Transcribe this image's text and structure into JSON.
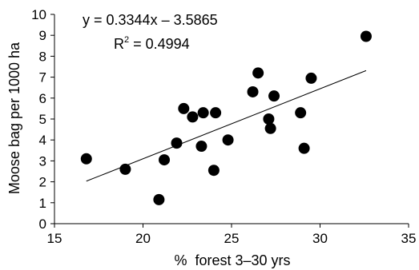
{
  "chart_data": {
    "type": "scatter",
    "xlabel": "%  forest 3–30 yrs",
    "ylabel": "Moose bag per 1000 ha",
    "xlim": [
      15,
      35
    ],
    "ylim": [
      0,
      10
    ],
    "x_ticks": [
      "15",
      "20",
      "25",
      "30",
      "35"
    ],
    "y_ticks": [
      "0",
      "1",
      "2",
      "3",
      "4",
      "5",
      "6",
      "7",
      "8",
      "9",
      "10"
    ],
    "grid": false,
    "equation": "y = 0.3344x – 3.5865",
    "r_squared_label": "R",
    "r_squared_exp": "2",
    "r_squared_value": " = 0.4994",
    "trendline": {
      "slope": 0.3344,
      "intercept": -3.5865,
      "x_range": [
        16.8,
        32.6
      ]
    },
    "points": [
      {
        "x": 16.8,
        "y": 3.1
      },
      {
        "x": 19.0,
        "y": 2.6
      },
      {
        "x": 20.9,
        "y": 1.15
      },
      {
        "x": 21.2,
        "y": 3.05
      },
      {
        "x": 21.9,
        "y": 3.85
      },
      {
        "x": 22.3,
        "y": 5.5
      },
      {
        "x": 22.8,
        "y": 5.1
      },
      {
        "x": 23.3,
        "y": 3.7
      },
      {
        "x": 23.4,
        "y": 5.3
      },
      {
        "x": 24.0,
        "y": 2.55
      },
      {
        "x": 24.1,
        "y": 5.3
      },
      {
        "x": 24.8,
        "y": 4.0
      },
      {
        "x": 26.2,
        "y": 6.3
      },
      {
        "x": 26.5,
        "y": 7.2
      },
      {
        "x": 27.1,
        "y": 5.0
      },
      {
        "x": 27.2,
        "y": 4.55
      },
      {
        "x": 27.4,
        "y": 6.1
      },
      {
        "x": 28.9,
        "y": 5.3
      },
      {
        "x": 29.1,
        "y": 3.6
      },
      {
        "x": 29.5,
        "y": 6.95
      },
      {
        "x": 32.6,
        "y": 8.95
      }
    ],
    "colors": {
      "marker": "#000000",
      "line": "#000000"
    }
  }
}
